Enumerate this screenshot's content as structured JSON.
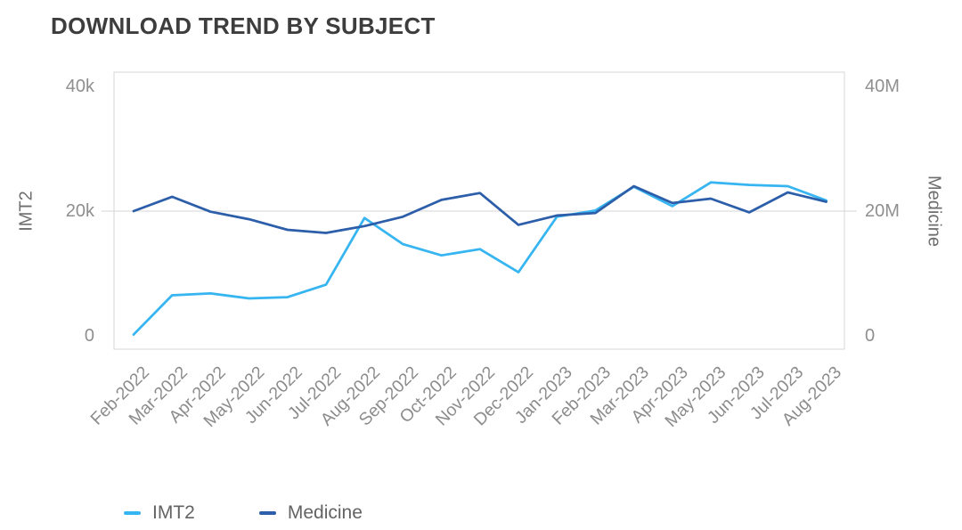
{
  "chart_data": {
    "type": "line",
    "title": "DOWNLOAD TREND BY SUBJECT",
    "categories": [
      "Feb-2022",
      "Mar-2022",
      "Apr-2022",
      "May-2022",
      "Jun-2022",
      "Jul-2022",
      "Aug-2022",
      "Sep-2022",
      "Oct-2022",
      "Nov-2022",
      "Dec-2022",
      "Jan-2023",
      "Feb-2023",
      "Mar-2023",
      "Apr-2023",
      "May-2023",
      "Jun-2023",
      "Jul-2023",
      "Aug-2023"
    ],
    "series": [
      {
        "name": "IMT2",
        "axis": "left",
        "unit": "thousands",
        "color": "#36b5f1",
        "values": [
          0.2,
          6.5,
          6.8,
          6.0,
          6.2,
          8.2,
          18.9,
          14.7,
          12.9,
          13.9,
          10.2,
          19.1,
          20.1,
          23.9,
          20.8,
          24.6,
          24.2,
          24.0,
          21.7
        ]
      },
      {
        "name": "Medicine",
        "axis": "right",
        "unit": "millions",
        "color": "#2c5ea9",
        "values": [
          20.0,
          22.3,
          19.9,
          18.7,
          17.0,
          16.5,
          17.6,
          19.1,
          21.8,
          22.9,
          17.8,
          19.3,
          19.7,
          24.0,
          21.3,
          22.0,
          19.8,
          23.0,
          21.5
        ]
      }
    ],
    "left_axis": {
      "label": "IMT2",
      "tick_labels": [
        "40k",
        "20k",
        "0"
      ],
      "tick_values": [
        40,
        20,
        0
      ],
      "range": [
        0,
        40
      ]
    },
    "right_axis": {
      "label": "Medicine",
      "tick_labels": [
        "40M",
        "20M",
        "0"
      ],
      "tick_values": [
        40,
        20,
        0
      ],
      "range": [
        0,
        40
      ]
    },
    "grid": "single horizontal gridline at the 20k / 20M level",
    "legend_position": "bottom-left",
    "colors": {
      "grid": "#d4d4d4",
      "frame": "#d7d7d7",
      "title_text": "#3d3d3d",
      "axis_text": "#8f8f8f",
      "legend_text": "#636363"
    }
  }
}
